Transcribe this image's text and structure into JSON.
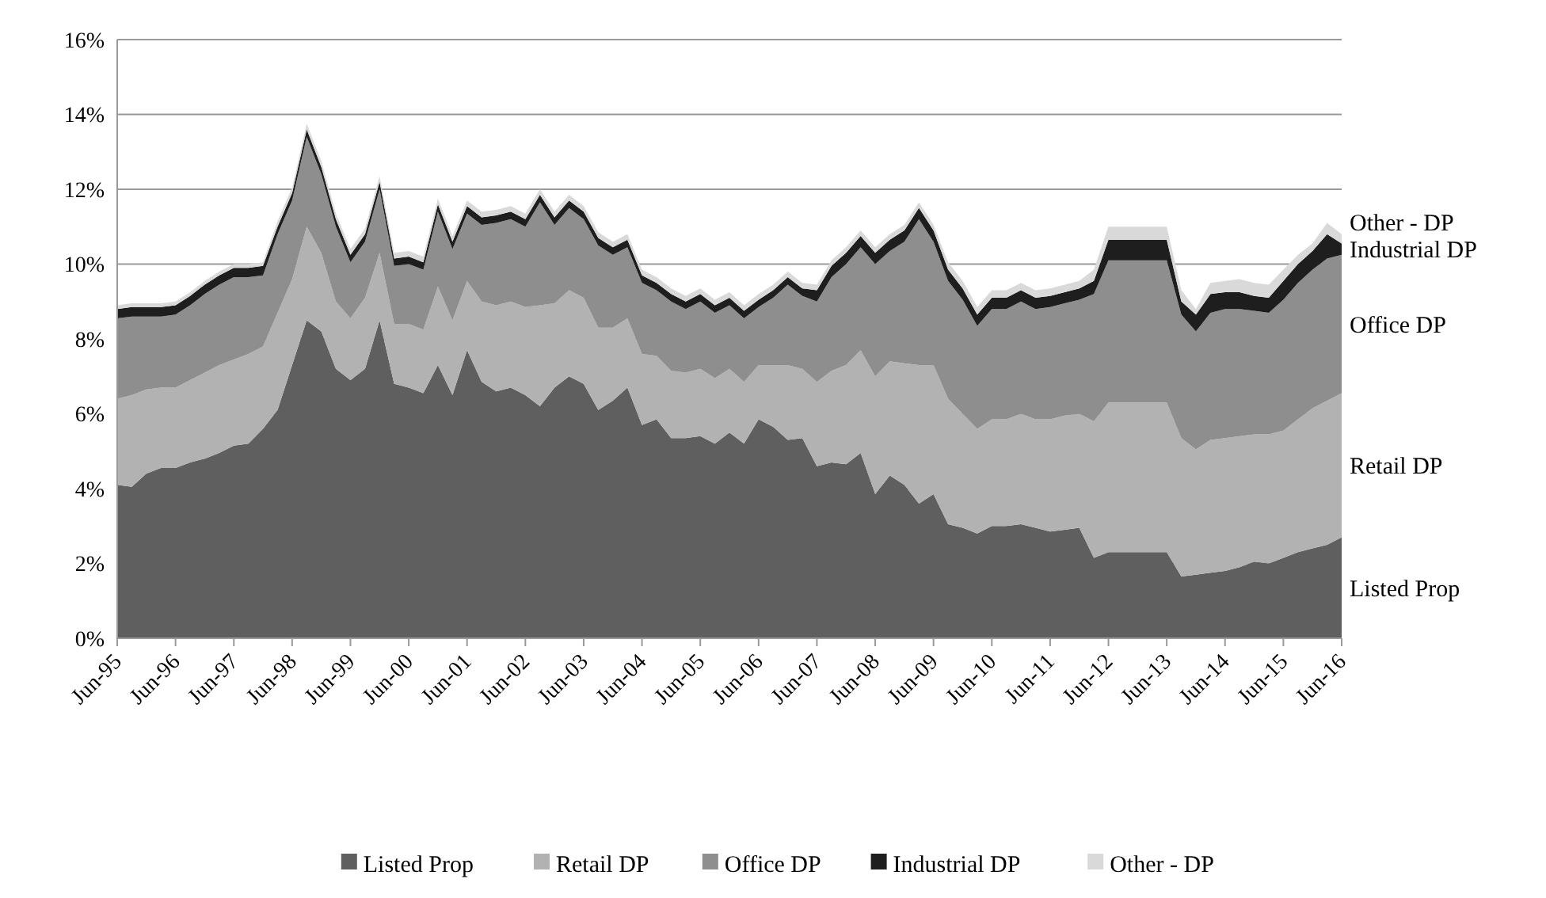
{
  "chart_data": {
    "type": "area",
    "stacked": true,
    "categories": [
      "Jun-95",
      null,
      null,
      null,
      "Jun-96",
      null,
      null,
      null,
      "Jun-97",
      null,
      null,
      null,
      "Jun-98",
      null,
      null,
      null,
      "Jun-99",
      null,
      null,
      null,
      "Jun-00",
      null,
      null,
      null,
      "Jun-01",
      null,
      null,
      null,
      "Jun-02",
      null,
      null,
      null,
      "Jun-03",
      null,
      null,
      null,
      "Jun-04",
      null,
      null,
      null,
      "Jun-05",
      null,
      null,
      null,
      "Jun-06",
      null,
      null,
      null,
      "Jun-07",
      null,
      null,
      null,
      "Jun-08",
      null,
      null,
      null,
      "Jun-09",
      null,
      null,
      null,
      "Jun-10",
      null,
      null,
      null,
      "Jun-11",
      null,
      null,
      null,
      "Jun-12",
      null,
      null,
      null,
      "Jun-13",
      null,
      null,
      null,
      "Jun-14",
      null,
      null,
      null,
      "Jun-15",
      null,
      null,
      null,
      "Jun-16"
    ],
    "series": [
      {
        "name": "Listed Prop",
        "color": "#5f5f5f",
        "values": [
          4.1,
          4.05,
          4.4,
          4.55,
          4.55,
          4.7,
          4.8,
          4.95,
          5.15,
          5.2,
          5.6,
          6.1,
          7.3,
          8.5,
          8.2,
          7.2,
          6.9,
          7.2,
          8.5,
          6.8,
          6.7,
          6.55,
          7.3,
          6.5,
          7.7,
          6.85,
          6.6,
          6.7,
          6.5,
          6.2,
          6.7,
          7.0,
          6.8,
          6.1,
          6.35,
          6.7,
          5.7,
          5.85,
          5.35,
          5.35,
          5.4,
          5.2,
          5.5,
          5.2,
          5.85,
          5.65,
          5.3,
          5.35,
          4.6,
          4.7,
          4.65,
          4.95,
          3.85,
          4.35,
          4.1,
          3.6,
          3.85,
          3.05,
          2.95,
          2.8,
          3.0,
          3.0,
          3.05,
          2.95,
          2.85,
          2.9,
          2.95,
          2.15,
          2.3,
          2.3,
          2.3,
          2.3,
          2.3,
          1.65,
          1.7,
          1.75,
          1.8,
          1.9,
          2.05,
          2.0,
          2.15,
          2.3,
          2.4,
          2.5,
          2.7
        ]
      },
      {
        "name": "Retail DP",
        "color": "#b2b2b2",
        "values": [
          2.3,
          2.45,
          2.25,
          2.15,
          2.15,
          2.2,
          2.3,
          2.35,
          2.3,
          2.4,
          2.2,
          2.6,
          2.3,
          2.5,
          2.1,
          1.8,
          1.65,
          1.9,
          1.8,
          1.6,
          1.7,
          1.7,
          2.1,
          2.0,
          1.85,
          2.15,
          2.3,
          2.3,
          2.35,
          2.7,
          2.25,
          2.3,
          2.3,
          2.2,
          1.95,
          1.85,
          1.9,
          1.7,
          1.8,
          1.75,
          1.8,
          1.75,
          1.7,
          1.65,
          1.45,
          1.65,
          2.0,
          1.85,
          2.25,
          2.45,
          2.65,
          2.75,
          3.15,
          3.05,
          3.25,
          3.7,
          3.45,
          3.35,
          3.05,
          2.8,
          2.85,
          2.85,
          2.95,
          2.9,
          3.0,
          3.05,
          3.05,
          3.65,
          4.0,
          4.0,
          4.0,
          4.0,
          4.0,
          3.7,
          3.35,
          3.55,
          3.55,
          3.5,
          3.4,
          3.45,
          3.4,
          3.55,
          3.75,
          3.85,
          3.85
        ]
      },
      {
        "name": "Office DP",
        "color": "#8e8e8e",
        "values": [
          2.15,
          2.1,
          1.95,
          1.9,
          1.95,
          2.0,
          2.1,
          2.15,
          2.2,
          2.05,
          1.9,
          2.1,
          2.1,
          2.4,
          2.1,
          2.0,
          1.5,
          1.5,
          1.7,
          1.55,
          1.6,
          1.6,
          2.0,
          1.9,
          1.8,
          2.05,
          2.2,
          2.2,
          2.15,
          2.75,
          2.1,
          2.2,
          2.1,
          2.2,
          1.95,
          1.9,
          1.9,
          1.75,
          1.85,
          1.7,
          1.8,
          1.75,
          1.7,
          1.7,
          1.55,
          1.8,
          2.15,
          1.95,
          2.15,
          2.5,
          2.7,
          2.75,
          3.0,
          2.95,
          3.25,
          3.9,
          3.3,
          3.15,
          3.05,
          2.75,
          2.95,
          2.95,
          3.0,
          2.95,
          3.0,
          3.0,
          3.05,
          3.4,
          3.8,
          3.8,
          3.8,
          3.8,
          3.8,
          3.3,
          3.15,
          3.4,
          3.45,
          3.4,
          3.3,
          3.25,
          3.5,
          3.65,
          3.7,
          3.8,
          3.7
        ]
      },
      {
        "name": "Industrial DP",
        "color": "#1e1e1e",
        "values": [
          0.25,
          0.25,
          0.25,
          0.25,
          0.25,
          0.25,
          0.25,
          0.25,
          0.25,
          0.25,
          0.25,
          0.2,
          0.2,
          0.2,
          0.2,
          0.2,
          0.2,
          0.2,
          0.2,
          0.2,
          0.2,
          0.2,
          0.2,
          0.2,
          0.2,
          0.2,
          0.2,
          0.2,
          0.2,
          0.2,
          0.2,
          0.2,
          0.2,
          0.2,
          0.2,
          0.2,
          0.2,
          0.2,
          0.2,
          0.2,
          0.2,
          0.2,
          0.2,
          0.2,
          0.2,
          0.2,
          0.2,
          0.2,
          0.3,
          0.3,
          0.3,
          0.3,
          0.3,
          0.3,
          0.3,
          0.3,
          0.3,
          0.3,
          0.3,
          0.3,
          0.3,
          0.3,
          0.3,
          0.3,
          0.3,
          0.3,
          0.3,
          0.35,
          0.55,
          0.55,
          0.55,
          0.55,
          0.55,
          0.35,
          0.45,
          0.5,
          0.45,
          0.45,
          0.4,
          0.4,
          0.5,
          0.5,
          0.5,
          0.65,
          0.3
        ]
      },
      {
        "name": "Other - DP",
        "color": "#d9d9d9",
        "values": [
          0.1,
          0.1,
          0.1,
          0.1,
          0.1,
          0.1,
          0.1,
          0.1,
          0.1,
          0.1,
          0.1,
          0.15,
          0.15,
          0.15,
          0.15,
          0.15,
          0.15,
          0.15,
          0.15,
          0.15,
          0.15,
          0.15,
          0.15,
          0.15,
          0.15,
          0.15,
          0.15,
          0.15,
          0.15,
          0.15,
          0.15,
          0.15,
          0.15,
          0.15,
          0.15,
          0.15,
          0.15,
          0.15,
          0.15,
          0.15,
          0.15,
          0.15,
          0.15,
          0.15,
          0.15,
          0.15,
          0.15,
          0.15,
          0.15,
          0.15,
          0.15,
          0.15,
          0.15,
          0.15,
          0.15,
          0.15,
          0.15,
          0.2,
          0.2,
          0.2,
          0.2,
          0.2,
          0.2,
          0.2,
          0.2,
          0.2,
          0.2,
          0.3,
          0.35,
          0.35,
          0.35,
          0.35,
          0.35,
          0.3,
          0.15,
          0.3,
          0.3,
          0.35,
          0.35,
          0.35,
          0.3,
          0.25,
          0.2,
          0.3,
          0.25
        ]
      }
    ],
    "ylim": [
      0,
      16
    ],
    "yticks": [
      {
        "value": 0,
        "label": "0%"
      },
      {
        "value": 2,
        "label": "2%"
      },
      {
        "value": 4,
        "label": "4%"
      },
      {
        "value": 6,
        "label": "6%"
      },
      {
        "value": 8,
        "label": "8%"
      },
      {
        "value": 10,
        "label": "10%"
      },
      {
        "value": 12,
        "label": "12%"
      },
      {
        "value": 14,
        "label": "14%"
      },
      {
        "value": 16,
        "label": "16%"
      }
    ],
    "grid": "y",
    "legend": "bottom"
  }
}
